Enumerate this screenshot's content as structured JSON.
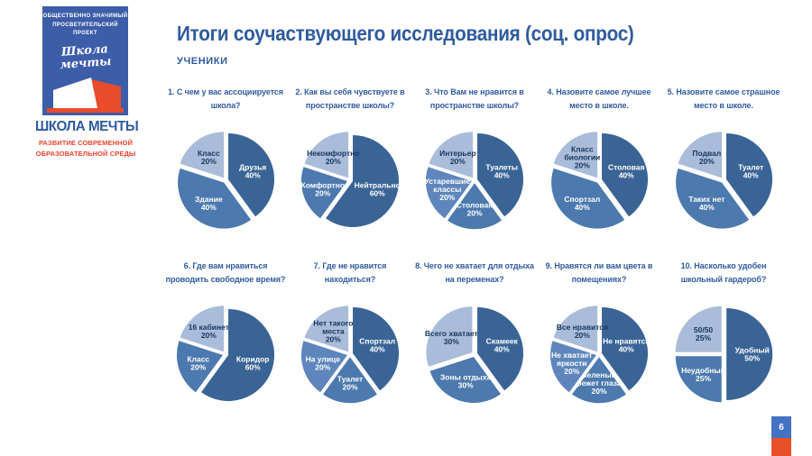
{
  "sidebar": {
    "project_label_line1": "ОБЩЕСТВЕННО ЗНАЧИМЫЙ",
    "project_label_line2": "ПРОСВЕТИТЕЛЬСКИЙ ПРОЕКТ",
    "logo_script_line1": "Школа",
    "logo_script_line2": "мечты",
    "brand_title": "ШКОЛА МЕЧТЫ",
    "brand_subtitle_line1": "РАЗВИТИЕ СОВРЕМЕННОЙ",
    "brand_subtitle_line2": "ОБРАЗОВАТЕЛЬНОЙ СРЕДЫ"
  },
  "header": {
    "title": "Итоги соучаствующего исследования (соц. опрос)",
    "subtitle": "УЧЕНИКИ"
  },
  "page_number": "6",
  "colors": {
    "accent_blue": "#2F5B9E",
    "accent_red": "#E8432C",
    "logo_box_blue": "#3D5DA9",
    "slice_dark": "#3A6496",
    "slice_mid": "#4C79AE",
    "slice_mid2": "#5E86BC",
    "slice_light": "#A9BCD9",
    "label_dark_text": "#17365D"
  },
  "chart_data": [
    {
      "type": "pie",
      "title": "1. С чем у вас ассоциируется школа?",
      "slices": [
        {
          "label": "Друзья",
          "label_lines": [
            "Друзья"
          ],
          "value": 40,
          "pct": "40%",
          "color": "dark"
        },
        {
          "label": "Здание",
          "label_lines": [
            "Здание"
          ],
          "value": 40,
          "pct": "40%",
          "color": "mid"
        },
        {
          "label": "Класс",
          "label_lines": [
            "Класс"
          ],
          "value": 20,
          "pct": "20%",
          "color": "light"
        }
      ]
    },
    {
      "type": "pie",
      "title": "2. Как вы себя чувствуете в пространстве школы?",
      "slices": [
        {
          "label": "Нейтрально",
          "label_lines": [
            "Нейтрально"
          ],
          "value": 60,
          "pct": "60%",
          "color": "dark"
        },
        {
          "label": "Комфортно",
          "label_lines": [
            "Комфортно"
          ],
          "value": 20,
          "pct": "20%",
          "color": "mid"
        },
        {
          "label": "Некомфортно",
          "label_lines": [
            "Некомфортно"
          ],
          "value": 20,
          "pct": "20%",
          "color": "light"
        }
      ]
    },
    {
      "type": "pie",
      "title": "3. Что Вам не нравится в пространстве школы?",
      "slices": [
        {
          "label": "Туалеты",
          "label_lines": [
            "Туалеты"
          ],
          "value": 40,
          "pct": "40%",
          "color": "dark"
        },
        {
          "label": "Столовая",
          "label_lines": [
            "Столовая"
          ],
          "value": 20,
          "pct": "20%",
          "color": "mid"
        },
        {
          "label": "Устаревшие классы",
          "label_lines": [
            "Устаревшие",
            "классы"
          ],
          "value": 20,
          "pct": "20%",
          "color": "mid2"
        },
        {
          "label": "Интерьер",
          "label_lines": [
            "Интерьер"
          ],
          "value": 20,
          "pct": "20%",
          "color": "light"
        }
      ]
    },
    {
      "type": "pie",
      "title": "4. Назовите самое лучшее место в школе.",
      "slices": [
        {
          "label": "Столовая",
          "label_lines": [
            "Столовая"
          ],
          "value": 40,
          "pct": "40%",
          "color": "dark"
        },
        {
          "label": "Спортзал",
          "label_lines": [
            "Спортзал"
          ],
          "value": 40,
          "pct": "40%",
          "color": "mid"
        },
        {
          "label": "Класс биологии",
          "label_lines": [
            "Класс",
            "биологии"
          ],
          "value": 20,
          "pct": "20%",
          "color": "light"
        }
      ]
    },
    {
      "type": "pie",
      "title": "5. Назовите самое страшное место в школе.",
      "slices": [
        {
          "label": "Туалет",
          "label_lines": [
            "Туалет"
          ],
          "value": 40,
          "pct": "40%",
          "color": "dark"
        },
        {
          "label": "Таких нет",
          "label_lines": [
            "Таких нет"
          ],
          "value": 40,
          "pct": "40%",
          "color": "mid"
        },
        {
          "label": "Подвал",
          "label_lines": [
            "Подвал"
          ],
          "value": 20,
          "pct": "20%",
          "color": "light"
        }
      ]
    },
    {
      "type": "pie",
      "title": "6. Где вам нравиться проводить свободное время?",
      "slices": [
        {
          "label": "Коридор",
          "label_lines": [
            "Коридор"
          ],
          "value": 60,
          "pct": "60%",
          "color": "dark"
        },
        {
          "label": "Класс",
          "label_lines": [
            "Класс"
          ],
          "value": 20,
          "pct": "20%",
          "color": "mid"
        },
        {
          "label": "16 кабинет",
          "label_lines": [
            "16 кабинет"
          ],
          "value": 20,
          "pct": "20%",
          "color": "light"
        }
      ]
    },
    {
      "type": "pie",
      "title": "7. Где не нравится находиться?",
      "slices": [
        {
          "label": "Спортзал",
          "label_lines": [
            "Спортзал"
          ],
          "value": 40,
          "pct": "40%",
          "color": "dark"
        },
        {
          "label": "Туалет",
          "label_lines": [
            "Туалет"
          ],
          "value": 20,
          "pct": "20%",
          "color": "mid"
        },
        {
          "label": "На улице",
          "label_lines": [
            "На улице"
          ],
          "value": 20,
          "pct": "20%",
          "color": "mid2"
        },
        {
          "label": "Нет такого места",
          "label_lines": [
            "Нет такого",
            "места"
          ],
          "value": 20,
          "pct": "20%",
          "color": "light"
        }
      ]
    },
    {
      "type": "pie",
      "title": "8. Чего не хватает для отдыха на переменах?",
      "slices": [
        {
          "label": "Скамеек",
          "label_lines": [
            "Скамеек"
          ],
          "value": 40,
          "pct": "40%",
          "color": "dark"
        },
        {
          "label": "Зоны отдыха",
          "label_lines": [
            "Зоны отдыха"
          ],
          "value": 30,
          "pct": "30%",
          "color": "mid"
        },
        {
          "label": "Всего хватает",
          "label_lines": [
            "Всего хватает"
          ],
          "value": 30,
          "pct": "30%",
          "color": "light"
        }
      ]
    },
    {
      "type": "pie",
      "title": "9. Нравятся ли вам цвета в помещениях?",
      "slices": [
        {
          "label": "Не нравятся",
          "label_lines": [
            "Не нравятся"
          ],
          "value": 40,
          "pct": "40%",
          "color": "dark"
        },
        {
          "label": "Зеленый режет глаза",
          "label_lines": [
            "Зеленый",
            "режет глаза"
          ],
          "value": 20,
          "pct": "20%",
          "color": "mid"
        },
        {
          "label": "Не хватает яркости",
          "label_lines": [
            "Не хватает",
            "яркости"
          ],
          "value": 20,
          "pct": "20%",
          "color": "mid2"
        },
        {
          "label": "Все нравится",
          "label_lines": [
            "Все нравится"
          ],
          "value": 20,
          "pct": "20%",
          "color": "light"
        }
      ]
    },
    {
      "type": "pie",
      "title": "10. Насколько удобен школьный гардероб?",
      "slices": [
        {
          "label": "Удобный",
          "label_lines": [
            "Удобный"
          ],
          "value": 50,
          "pct": "50%",
          "color": "dark"
        },
        {
          "label": "Неудобный",
          "label_lines": [
            "Неудобный"
          ],
          "value": 25,
          "pct": "25%",
          "color": "mid"
        },
        {
          "label": "50/50",
          "label_lines": [
            "50/50"
          ],
          "value": 25,
          "pct": "25%",
          "color": "light"
        }
      ]
    }
  ]
}
